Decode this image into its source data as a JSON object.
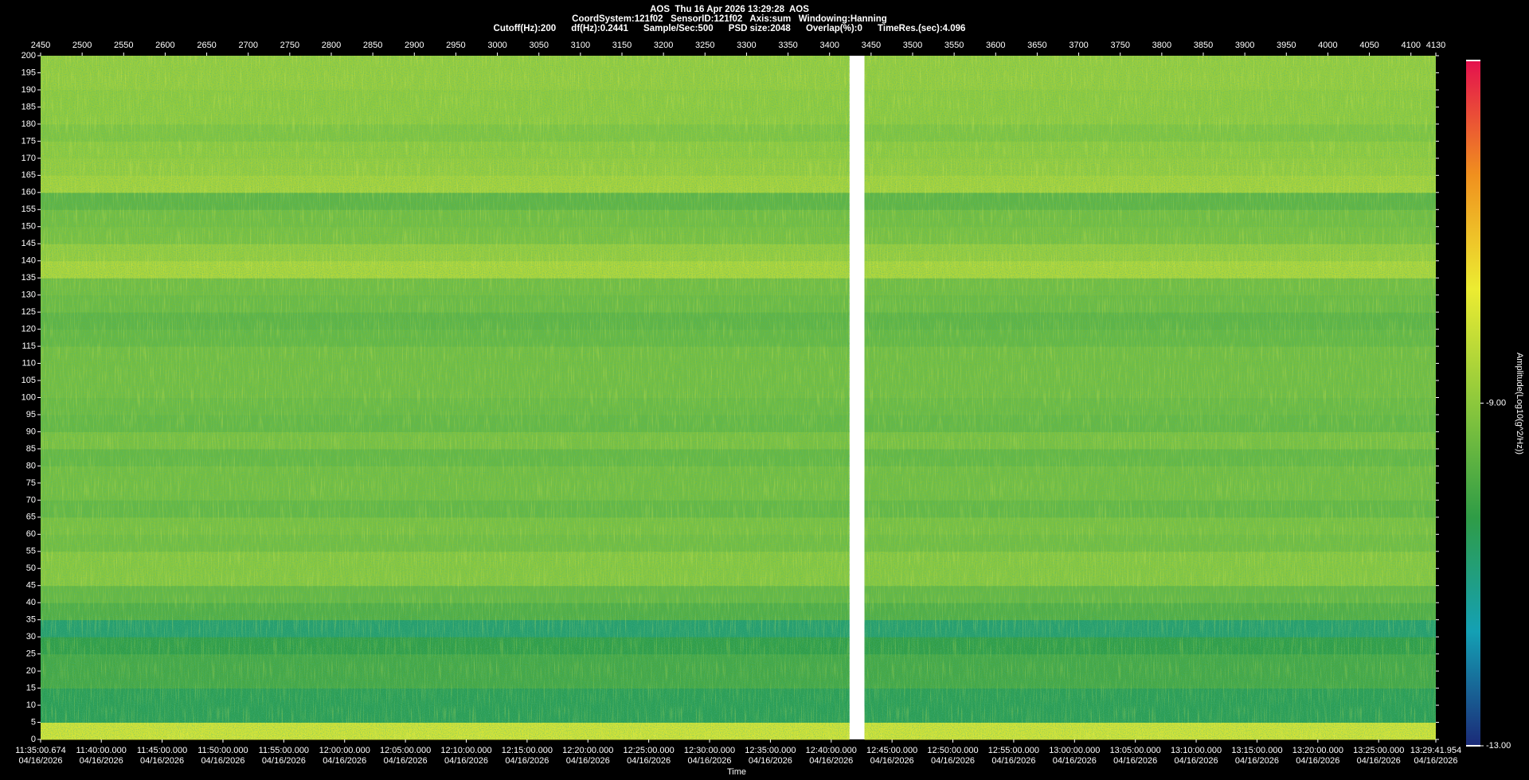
{
  "chart_data": {
    "type": "spectrogram",
    "title_lines": [
      "AOS  Thu 16 Apr 2026 13:29:28  AOS",
      "CoordSystem:121f02   SensorID:121f02   Axis:sum   Windowing:Hanning",
      "Cutoff(Hz):200      df(Hz):0.2441      Sample/Sec:500      PSD size:2048      Overlap(%):0      TimeRes.(sec):4.096"
    ],
    "x_label": "Time",
    "colorbar_label": "Amplitude(Log10(g^2/Hz))",
    "segments": [
      [
        2450,
        3424
      ],
      [
        3442,
        4130
      ]
    ],
    "bands": [
      0,
      5,
      10,
      15,
      20,
      25,
      30,
      35,
      40,
      45,
      50,
      55,
      60,
      65,
      70,
      75,
      80,
      85,
      90,
      95,
      100,
      105,
      110,
      115,
      120,
      125,
      130,
      135,
      140,
      145,
      150,
      155,
      160,
      165,
      170,
      175,
      180,
      185,
      190,
      195,
      200
    ],
    "values": [
      -8.0,
      -10.5,
      -10.5,
      -10.0,
      -10.0,
      -10.3,
      -10.8,
      -9.8,
      -9.5,
      -9.0,
      -9.0,
      -9.3,
      -9.2,
      -9.5,
      -9.3,
      -9.3,
      -9.5,
      -9.2,
      -9.5,
      -9.4,
      -9.3,
      -9.3,
      -9.3,
      -9.5,
      -9.6,
      -9.4,
      -9.3,
      -8.5,
      -8.8,
      -9.2,
      -9.3,
      -9.6,
      -8.6,
      -8.8,
      -8.9,
      -9.1,
      -8.9,
      -8.9,
      -8.8,
      -8.8
    ],
    "xlim": [
      2450,
      4130
    ],
    "xticks": [
      2450,
      2500,
      2550,
      2600,
      2650,
      2700,
      2750,
      2800,
      2850,
      2900,
      2950,
      3000,
      3050,
      3100,
      3150,
      3200,
      3250,
      3300,
      3350,
      3400,
      3450,
      3500,
      3550,
      3600,
      3650,
      3700,
      3750,
      3800,
      3850,
      3900,
      3950,
      4000,
      4050,
      4100,
      4130
    ],
    "ylim": [
      0,
      200
    ],
    "yticks": [
      0,
      5,
      10,
      15,
      20,
      25,
      30,
      35,
      40,
      45,
      50,
      55,
      60,
      65,
      70,
      75,
      80,
      85,
      90,
      95,
      100,
      105,
      110,
      115,
      120,
      125,
      130,
      135,
      140,
      145,
      150,
      155,
      160,
      165,
      170,
      175,
      180,
      185,
      190,
      195,
      200
    ],
    "timelim": [
      "11:35:00.674",
      "13:29:41.954"
    ],
    "timeticks": [
      {
        "time": "11:35:00.674",
        "date": "04/16/2026"
      },
      {
        "time": "11:40:00.000",
        "date": "04/16/2026"
      },
      {
        "time": "11:45:00.000",
        "date": "04/16/2026"
      },
      {
        "time": "11:50:00.000",
        "date": "04/16/2026"
      },
      {
        "time": "11:55:00.000",
        "date": "04/16/2026"
      },
      {
        "time": "12:00:00.000",
        "date": "04/16/2026"
      },
      {
        "time": "12:05:00.000",
        "date": "04/16/2026"
      },
      {
        "time": "12:10:00.000",
        "date": "04/16/2026"
      },
      {
        "time": "12:15:00.000",
        "date": "04/16/2026"
      },
      {
        "time": "12:20:00.000",
        "date": "04/16/2026"
      },
      {
        "time": "12:25:00.000",
        "date": "04/16/2026"
      },
      {
        "time": "12:30:00.000",
        "date": "04/16/2026"
      },
      {
        "time": "12:35:00.000",
        "date": "04/16/2026"
      },
      {
        "time": "12:40:00.000",
        "date": "04/16/2026"
      },
      {
        "time": "12:45:00.000",
        "date": "04/16/2026"
      },
      {
        "time": "12:50:00.000",
        "date": "04/16/2026"
      },
      {
        "time": "12:55:00.000",
        "date": "04/16/2026"
      },
      {
        "time": "13:00:00.000",
        "date": "04/16/2026"
      },
      {
        "time": "13:05:00.000",
        "date": "04/16/2026"
      },
      {
        "time": "13:10:00.000",
        "date": "04/16/2026"
      },
      {
        "time": "13:15:00.000",
        "date": "04/16/2026"
      },
      {
        "time": "13:20:00.000",
        "date": "04/16/2026"
      },
      {
        "time": "13:25:00.000",
        "date": "04/16/2026"
      },
      {
        "time": "13:29:41.954",
        "date": "04/16/2026"
      }
    ],
    "clim": [
      -13,
      -5
    ],
    "cticks": [
      {
        "value": -9,
        "label": "-9.00"
      },
      {
        "value": -13,
        "label": "-13.00"
      }
    ],
    "colormap": [
      "#1b2a78",
      "#14a0b4",
      "#2f9c46",
      "#8cc83c",
      "#ecec32",
      "#f0901e",
      "#e4104e"
    ]
  }
}
